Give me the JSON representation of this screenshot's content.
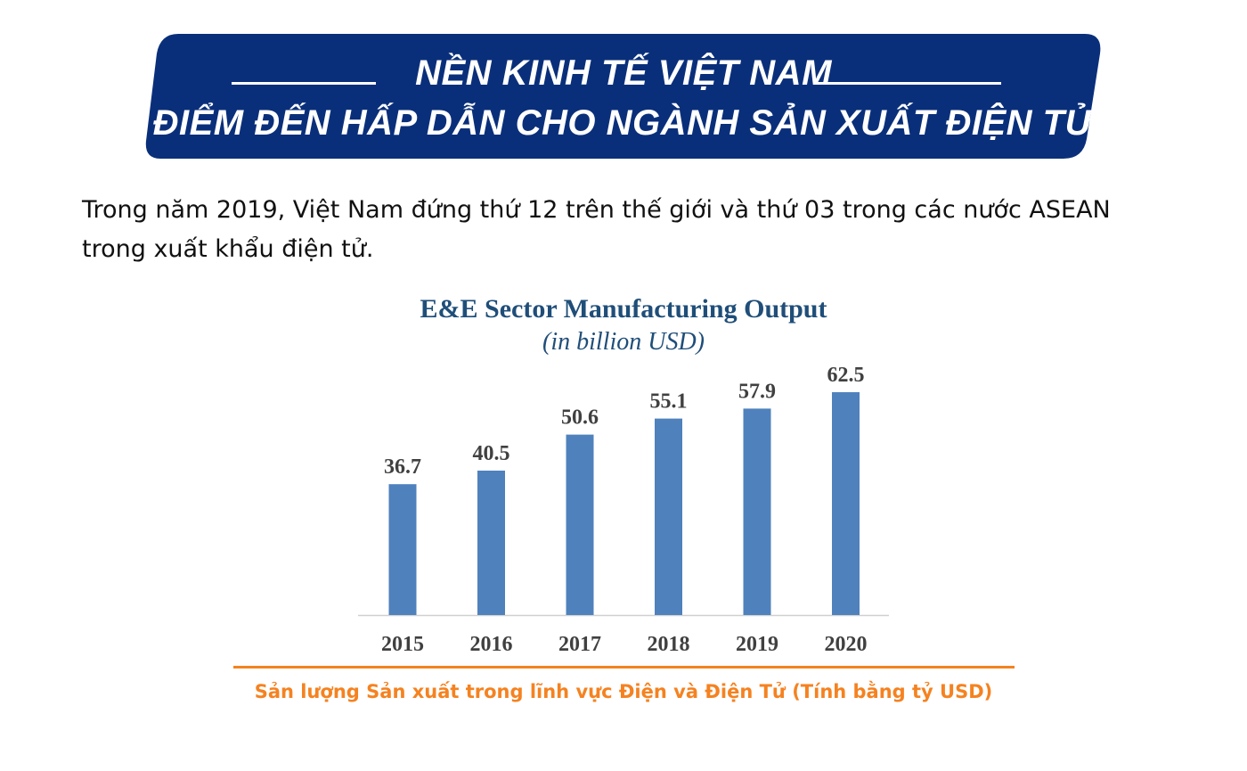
{
  "banner": {
    "line1": "NỀN KINH TẾ VIỆT NAM",
    "line2": "ĐIỂM ĐẾN HẤP DẪN CHO NGÀNH SẢN XUẤT ĐIỆN TỬ",
    "color": "#0a2f7a"
  },
  "intro": {
    "line1": "Trong năm 2019, Việt Nam đứng thứ 12 trên thế giới và thứ 03 trong các nước ASEAN",
    "line2": "trong xuất khẩu điện tử."
  },
  "chart_data": {
    "type": "bar",
    "title": "E&E Sector Manufacturing Output",
    "subtitle": "(in billion USD)",
    "categories": [
      "2015",
      "2016",
      "2017",
      "2018",
      "2019",
      "2020"
    ],
    "values": [
      36.7,
      40.5,
      50.6,
      55.1,
      57.9,
      62.5
    ],
    "value_labels": [
      "36.7",
      "40.5",
      "50.6",
      "55.1",
      "57.9",
      "62.5"
    ],
    "ylim": [
      0,
      66
    ],
    "grid": false,
    "legend": "none",
    "bar_color": "#4f81bd"
  },
  "footer": {
    "caption": "Sản lượng Sản xuất trong lĩnh vực Điện và Điện Tử (Tính bằng tỷ USD)",
    "color": "#f58220"
  }
}
